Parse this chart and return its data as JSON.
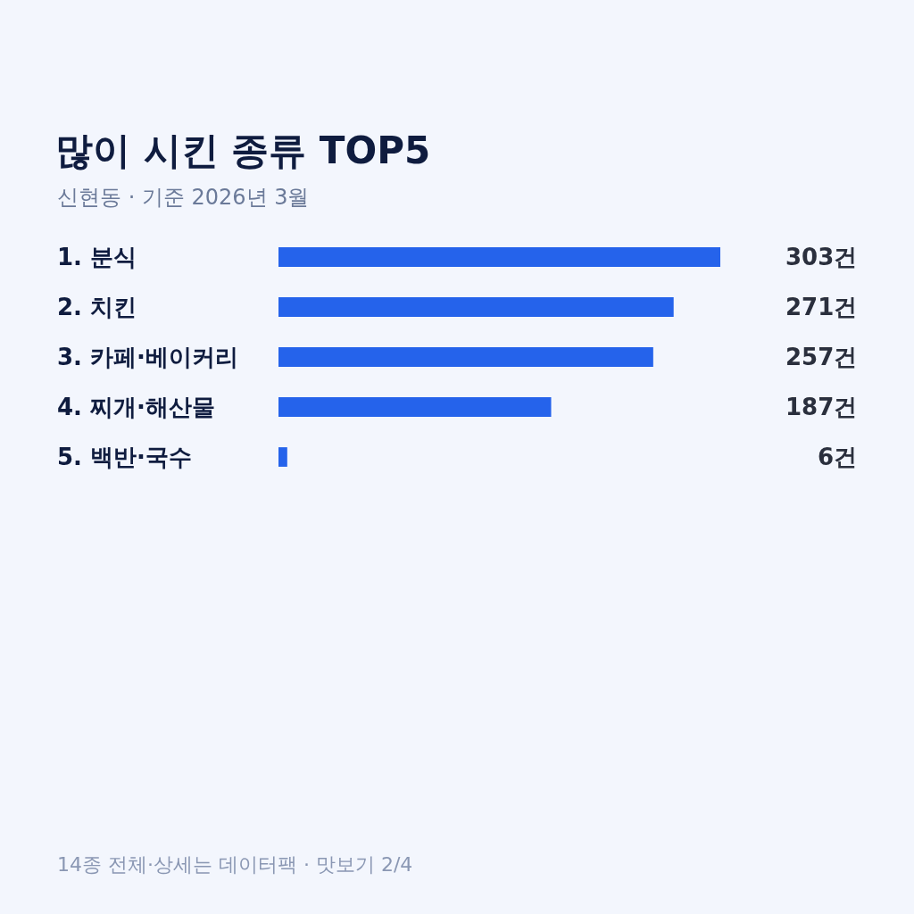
{
  "chart_data": {
    "type": "bar",
    "orientation": "horizontal",
    "title": "많이 시킨 종류 TOP5",
    "subtitle": "신현동 · 기준 2026년 3월",
    "categories": [
      "1. 분식",
      "2. 치킨",
      "3. 카페·베이커리",
      "4. 찌개·해산물",
      "5. 백반·국수"
    ],
    "values": [
      303,
      271,
      257,
      187,
      6
    ],
    "value_labels": [
      "303건",
      "271건",
      "257건",
      "187건",
      "6건"
    ],
    "color": "#2563eb",
    "xlim": [
      0,
      303
    ],
    "tick_labels": "y",
    "annotations": [
      "14종 전체·상세는 데이터팩 · 맛보기 2/4"
    ]
  }
}
